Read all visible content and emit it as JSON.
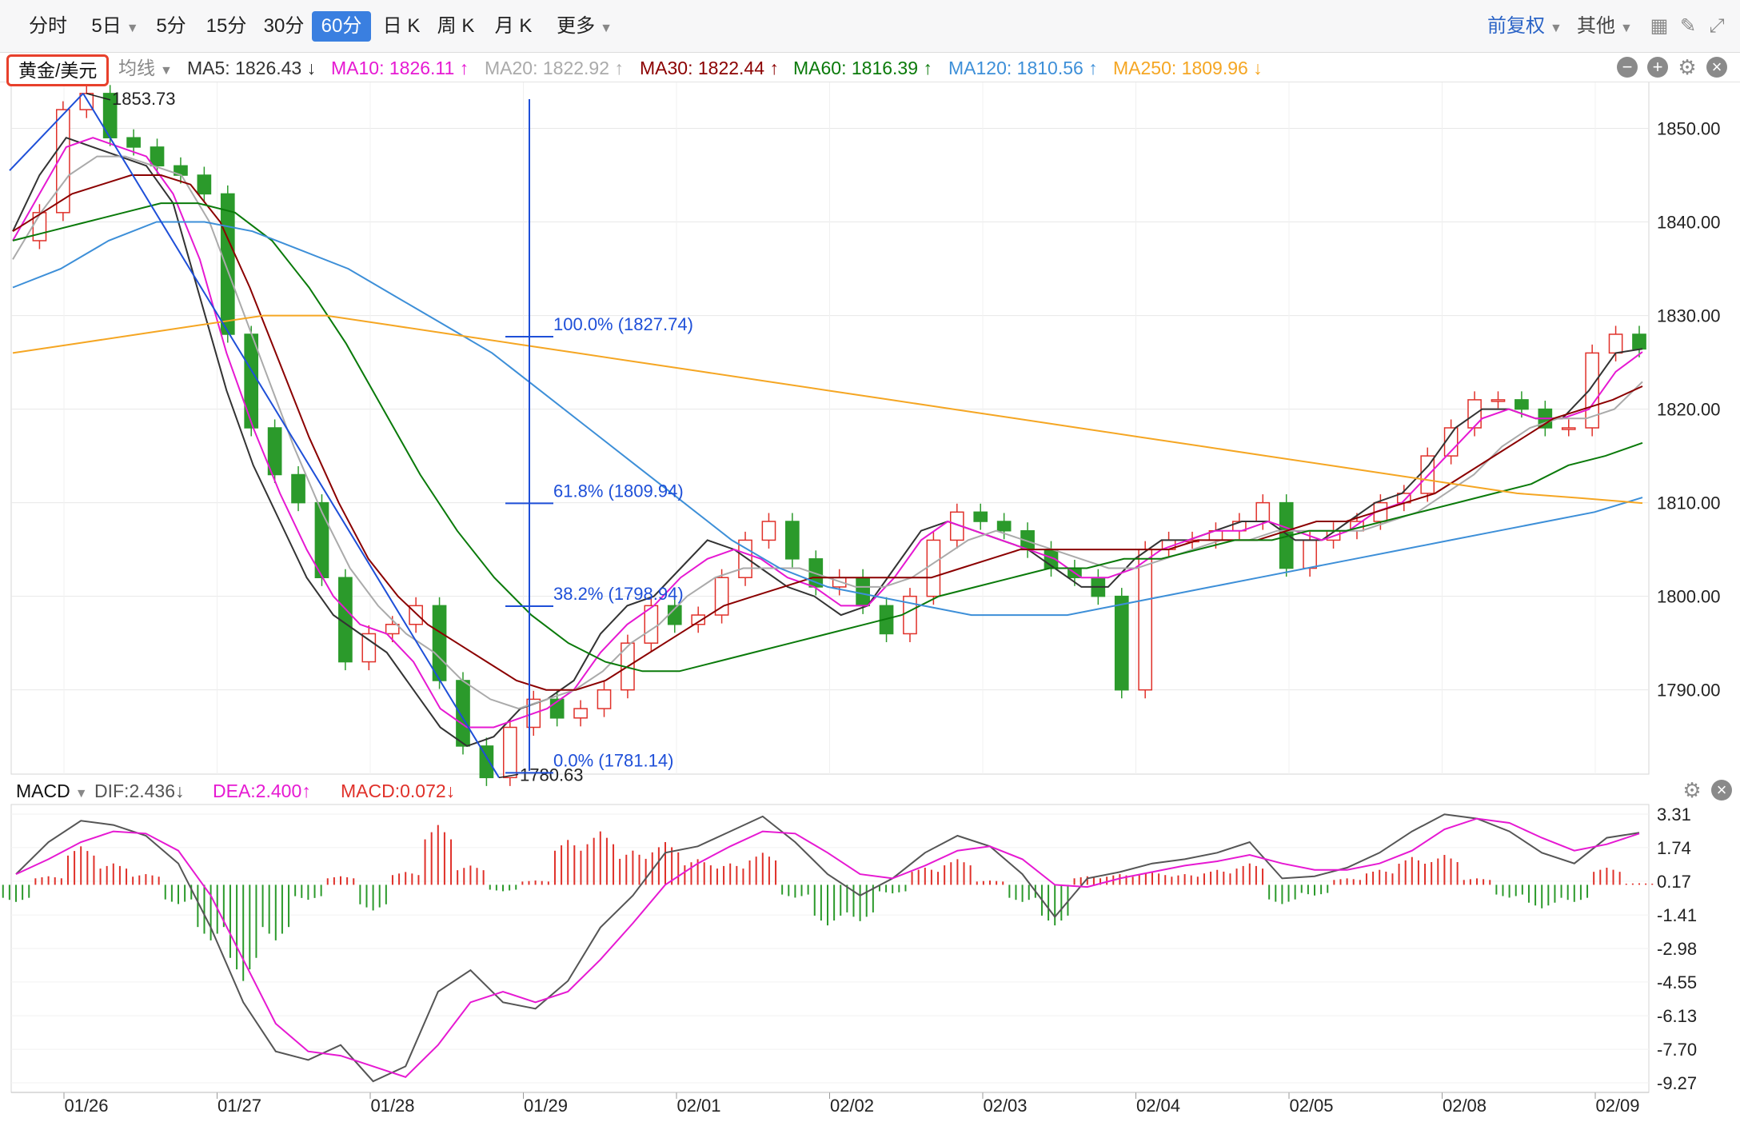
{
  "toolbar": {
    "periods": [
      "分时",
      "5日",
      "5分",
      "15分",
      "30分",
      "60分",
      "日 K",
      "周 K",
      "月 K",
      "更多"
    ],
    "active_period": "60分",
    "adjust_label": "前复权",
    "other_label": "其他"
  },
  "ma_bar": {
    "symbol": "黄金/美元",
    "avg_label": "均线",
    "items": [
      {
        "text": "MA5: 1826.43 ↓",
        "color": "#333333"
      },
      {
        "text": "MA10: 1826.11 ↑",
        "color": "#e619d2"
      },
      {
        "text": "MA20: 1822.92 ↑",
        "color": "#aaaaaa"
      },
      {
        "text": "MA30: 1822.44 ↑",
        "color": "#8b0000"
      },
      {
        "text": "MA60: 1816.39 ↑",
        "color": "#0a7a0a"
      },
      {
        "text": "MA120: 1810.56 ↑",
        "color": "#3d8fd8"
      },
      {
        "text": "MA250: 1809.96 ↓",
        "color": "#f5a623"
      }
    ]
  },
  "macd_bar": {
    "name": "MACD",
    "dif": "DIF:2.436↓",
    "dea": "DEA:2.400↑",
    "macd": "MACD:0.072↓"
  },
  "colors": {
    "up": "#e0312a",
    "down": "#2b9a2b",
    "fib": "#1e4fd8",
    "grid": "#e8e8e8"
  },
  "chart_data": {
    "type": "candlestick",
    "price_axis_ticks": [
      "1850.00",
      "1840.00",
      "1830.00",
      "1820.00",
      "1810.00",
      "1800.00",
      "1790.00"
    ],
    "price_ylim": [
      1781.0,
      1855.0
    ],
    "x_labels": [
      "01/26",
      "01/27",
      "01/28",
      "01/29",
      "02/01",
      "02/02",
      "02/03",
      "02/04",
      "02/05",
      "02/08",
      "02/09"
    ],
    "high_annotation": "1853.73",
    "low_annotation": "1780.63",
    "fib_levels": [
      {
        "label": "100.0% (1827.74)",
        "value": 1827.74
      },
      {
        "label": "61.8% (1809.94)",
        "value": 1809.94
      },
      {
        "label": "38.2% (1798.94)",
        "value": 1798.94
      },
      {
        "label": "0.0% (1781.14)",
        "value": 1781.14
      }
    ],
    "price_path": [
      1838,
      1841,
      1852,
      1853.73,
      1849,
      1848,
      1846,
      1845,
      1843,
      1828,
      1818,
      1813,
      1810,
      1802,
      1793,
      1796,
      1797,
      1799,
      1791,
      1784,
      1780.63,
      1786,
      1789,
      1787,
      1788,
      1790,
      1795,
      1799,
      1797,
      1798,
      1802,
      1806,
      1808,
      1804,
      1801,
      1802,
      1799,
      1796,
      1800,
      1806,
      1809,
      1808,
      1807,
      1805,
      1803,
      1802,
      1800,
      1790,
      1805,
      1806,
      1806,
      1807,
      1808,
      1810,
      1803,
      1806,
      1807,
      1808,
      1810,
      1811,
      1815,
      1818,
      1821,
      1821,
      1820,
      1818,
      1818,
      1826,
      1828,
      1826.43
    ],
    "ma_series": [
      {
        "name": "MA5",
        "color": "#333333",
        "points": [
          1839,
          1845,
          1849,
          1848,
          1847,
          1846,
          1842,
          1832,
          1822,
          1814,
          1808,
          1802,
          1798,
          1796,
          1794,
          1790,
          1786,
          1784,
          1785,
          1788,
          1789,
          1791,
          1796,
          1799,
          1800,
          1803,
          1806,
          1805,
          1803,
          1801,
          1800,
          1798,
          1799,
          1803,
          1807,
          1808,
          1807,
          1806,
          1805,
          1803,
          1801,
          1801,
          1804,
          1806,
          1806,
          1807,
          1808,
          1808,
          1806,
          1806,
          1808,
          1810,
          1811,
          1814,
          1818,
          1820,
          1820,
          1819,
          1819,
          1822,
          1826,
          1826.43
        ]
      },
      {
        "name": "MA10",
        "color": "#e619d2",
        "points": [
          1838,
          1843,
          1848,
          1849,
          1848,
          1847,
          1843,
          1836,
          1826,
          1818,
          1811,
          1805,
          1800,
          1797,
          1796,
          1793,
          1788,
          1786,
          1786,
          1787,
          1788,
          1790,
          1794,
          1797,
          1799,
          1802,
          1804,
          1805,
          1804,
          1802,
          1801,
          1799,
          1799,
          1802,
          1806,
          1808,
          1807,
          1806,
          1805,
          1804,
          1802,
          1802,
          1803,
          1805,
          1806,
          1807,
          1807,
          1808,
          1807,
          1806,
          1807,
          1809,
          1810,
          1813,
          1816,
          1819,
          1820,
          1819,
          1819,
          1820,
          1824,
          1826.11
        ]
      },
      {
        "name": "MA20",
        "color": "#aaaaaa",
        "points": [
          1836,
          1841,
          1845,
          1847,
          1847,
          1846,
          1845,
          1840,
          1832,
          1824,
          1816,
          1809,
          1803,
          1799,
          1796,
          1794,
          1791,
          1789,
          1788,
          1789,
          1790,
          1792,
          1795,
          1797,
          1800,
          1802,
          1803,
          1803,
          1803,
          1802,
          1801,
          1801,
          1802,
          1804,
          1806,
          1807,
          1806,
          1805,
          1804,
          1803,
          1803,
          1804,
          1805,
          1806,
          1806,
          1807,
          1807,
          1807,
          1807,
          1808,
          1809,
          1811,
          1813,
          1816,
          1818,
          1819,
          1819,
          1820,
          1822.92
        ]
      },
      {
        "name": "MA30",
        "color": "#8b0000",
        "points": [
          1839,
          1841,
          1843,
          1844,
          1845,
          1845,
          1844,
          1840,
          1833,
          1825,
          1817,
          1810,
          1804,
          1800,
          1797,
          1795,
          1793,
          1791,
          1790,
          1790,
          1791,
          1793,
          1795,
          1797,
          1799,
          1800,
          1801,
          1802,
          1802,
          1802,
          1802,
          1802,
          1803,
          1804,
          1805,
          1805,
          1805,
          1805,
          1805,
          1805,
          1806,
          1806,
          1806,
          1807,
          1808,
          1808,
          1809,
          1810,
          1811,
          1813,
          1815,
          1817,
          1819,
          1820,
          1821,
          1822.44
        ]
      },
      {
        "name": "MA60",
        "color": "#0a7a0a",
        "points": [
          1838,
          1839,
          1840,
          1841,
          1842,
          1842,
          1841,
          1838,
          1833,
          1827,
          1820,
          1813,
          1807,
          1802,
          1798,
          1795,
          1793,
          1792,
          1792,
          1793,
          1794,
          1795,
          1796,
          1797,
          1798,
          1800,
          1801,
          1802,
          1803,
          1803,
          1804,
          1804,
          1805,
          1806,
          1806,
          1807,
          1807,
          1808,
          1809,
          1810,
          1811,
          1812,
          1814,
          1815,
          1816.39
        ]
      },
      {
        "name": "MA120",
        "color": "#3d8fd8",
        "points": [
          1833,
          1835,
          1838,
          1840,
          1840,
          1839,
          1837,
          1835,
          1832,
          1829,
          1826,
          1822,
          1818,
          1814,
          1810,
          1806,
          1803,
          1801,
          1800,
          1799,
          1798,
          1798,
          1798,
          1799,
          1800,
          1801,
          1802,
          1803,
          1804,
          1805,
          1806,
          1807,
          1808,
          1809,
          1810.56
        ]
      },
      {
        "name": "MA250",
        "color": "#f5a623",
        "points": [
          1826,
          1827,
          1828,
          1829,
          1830,
          1830,
          1829,
          1828,
          1827,
          1826,
          1825,
          1824,
          1823,
          1822,
          1821,
          1820,
          1819,
          1818,
          1817,
          1816,
          1815,
          1814,
          1813,
          1812,
          1811,
          1810.5,
          1809.96
        ]
      }
    ],
    "macd": {
      "axis_ticks": [
        "3.31",
        "1.74",
        "0.17",
        "-1.41",
        "-2.98",
        "-4.55",
        "-6.13",
        "-7.70",
        "-9.27"
      ],
      "ylim": [
        -9.27,
        3.31
      ],
      "dif": [
        0.5,
        2.0,
        3.0,
        2.8,
        2.3,
        1.0,
        -2.0,
        -5.5,
        -7.8,
        -8.2,
        -7.5,
        -9.2,
        -8.5,
        -5.0,
        -4.0,
        -5.5,
        -5.8,
        -4.5,
        -2.0,
        -0.5,
        1.5,
        1.8,
        2.5,
        3.2,
        2.0,
        0.5,
        -0.5,
        0.3,
        1.5,
        2.3,
        1.8,
        0.5,
        -1.5,
        0.3,
        0.6,
        1.0,
        1.2,
        1.5,
        2.0,
        0.3,
        0.4,
        0.8,
        1.5,
        2.5,
        3.3,
        3.1,
        2.5,
        1.5,
        1.0,
        2.2,
        2.436
      ],
      "dea": [
        0.5,
        1.2,
        2.0,
        2.5,
        2.4,
        1.6,
        -0.5,
        -3.5,
        -6.5,
        -7.8,
        -8.0,
        -8.5,
        -9.0,
        -7.5,
        -5.5,
        -5.0,
        -5.5,
        -5.0,
        -3.5,
        -1.8,
        0.0,
        1.0,
        1.8,
        2.5,
        2.4,
        1.5,
        0.5,
        0.3,
        0.9,
        1.6,
        1.8,
        1.2,
        0.0,
        -0.1,
        0.3,
        0.6,
        0.9,
        1.1,
        1.4,
        1.0,
        0.7,
        0.7,
        1.0,
        1.6,
        2.6,
        3.1,
        2.9,
        2.2,
        1.6,
        1.9,
        2.4
      ],
      "histogram": [
        -0.8,
        0.4,
        1.8,
        1.0,
        0.5,
        -0.9,
        -2.6,
        -4.5,
        -2.6,
        -0.7,
        0.4,
        -1.2,
        0.6,
        2.8,
        0.9,
        -0.3,
        0.2,
        2.1,
        2.5,
        1.6,
        2.0,
        1.2,
        1.0,
        1.5,
        -0.6,
        -1.9,
        -1.7,
        -0.4,
        0.8,
        1.2,
        0.2,
        -0.8,
        -1.9,
        0.4,
        0.5,
        0.6,
        0.5,
        0.7,
        1.0,
        -0.9,
        -0.5,
        0.3,
        0.7,
        1.3,
        1.4,
        0.3,
        -0.6,
        -1.1,
        -0.8,
        0.8,
        0.072
      ]
    }
  }
}
